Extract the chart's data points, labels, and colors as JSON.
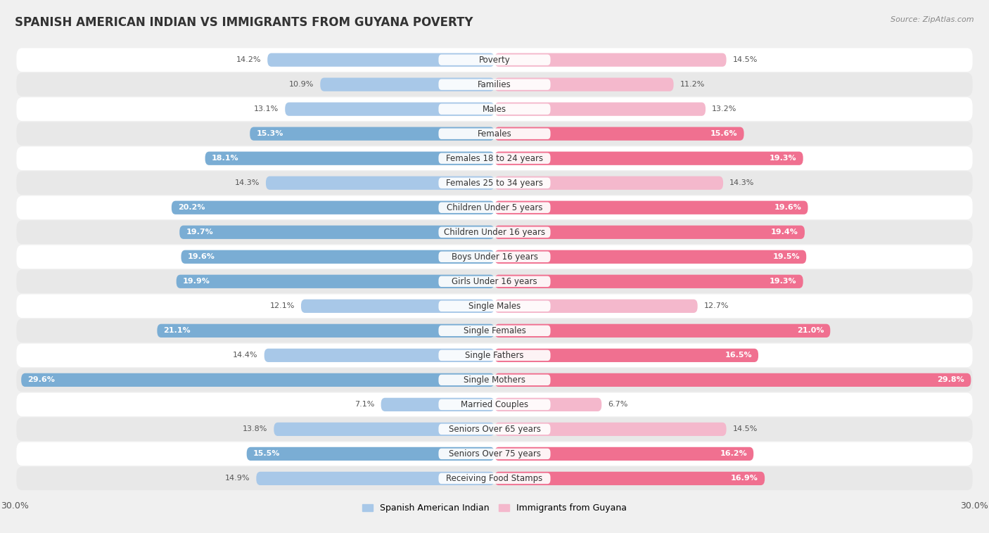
{
  "title": "SPANISH AMERICAN INDIAN VS IMMIGRANTS FROM GUYANA POVERTY",
  "source": "Source: ZipAtlas.com",
  "categories": [
    "Poverty",
    "Families",
    "Males",
    "Females",
    "Females 18 to 24 years",
    "Females 25 to 34 years",
    "Children Under 5 years",
    "Children Under 16 years",
    "Boys Under 16 years",
    "Girls Under 16 years",
    "Single Males",
    "Single Females",
    "Single Fathers",
    "Single Mothers",
    "Married Couples",
    "Seniors Over 65 years",
    "Seniors Over 75 years",
    "Receiving Food Stamps"
  ],
  "left_values": [
    14.2,
    10.9,
    13.1,
    15.3,
    18.1,
    14.3,
    20.2,
    19.7,
    19.6,
    19.9,
    12.1,
    21.1,
    14.4,
    29.6,
    7.1,
    13.8,
    15.5,
    14.9
  ],
  "right_values": [
    14.5,
    11.2,
    13.2,
    15.6,
    19.3,
    14.3,
    19.6,
    19.4,
    19.5,
    19.3,
    12.7,
    21.0,
    16.5,
    29.8,
    6.7,
    14.5,
    16.2,
    16.9
  ],
  "left_color_normal": "#a8c8e8",
  "left_color_highlight": "#7aadd4",
  "right_color_normal": "#f4b8cc",
  "right_color_highlight": "#f07090",
  "highlight_threshold": 15.01,
  "left_label": "Spanish American Indian",
  "right_label": "Immigrants from Guyana",
  "background_color": "#f0f0f0",
  "row_bg_white": "#ffffff",
  "row_bg_gray": "#e8e8e8",
  "axis_max": 30.0,
  "title_fontsize": 12,
  "label_fontsize": 8.5,
  "value_fontsize": 8.0,
  "tick_fontsize": 9
}
